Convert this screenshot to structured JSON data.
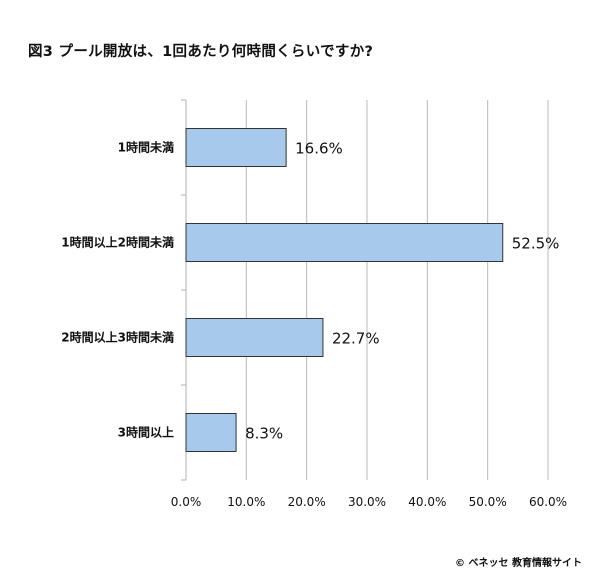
{
  "title": "図3 プール開放は、1回あたり何時間くらいですか?",
  "copyright": "© ベネッセ 教育情報サイト",
  "chart_data": {
    "type": "bar",
    "orientation": "horizontal",
    "categories": [
      "1時間未満",
      "1時間以上2時間未満",
      "2時間以上3時間未満",
      "3時間以上"
    ],
    "values": [
      16.6,
      52.5,
      22.7,
      8.3
    ],
    "value_labels": [
      "16.6%",
      "52.5%",
      "22.7%",
      "8.3%"
    ],
    "xlim": [
      0,
      60
    ],
    "x_ticks": [
      "0.0%",
      "10.0%",
      "20.0%",
      "30.0%",
      "40.0%",
      "50.0%",
      "60.0%"
    ],
    "grid": true,
    "bar_color": "#a6c9ec",
    "bar_edge_color": "#333333"
  }
}
